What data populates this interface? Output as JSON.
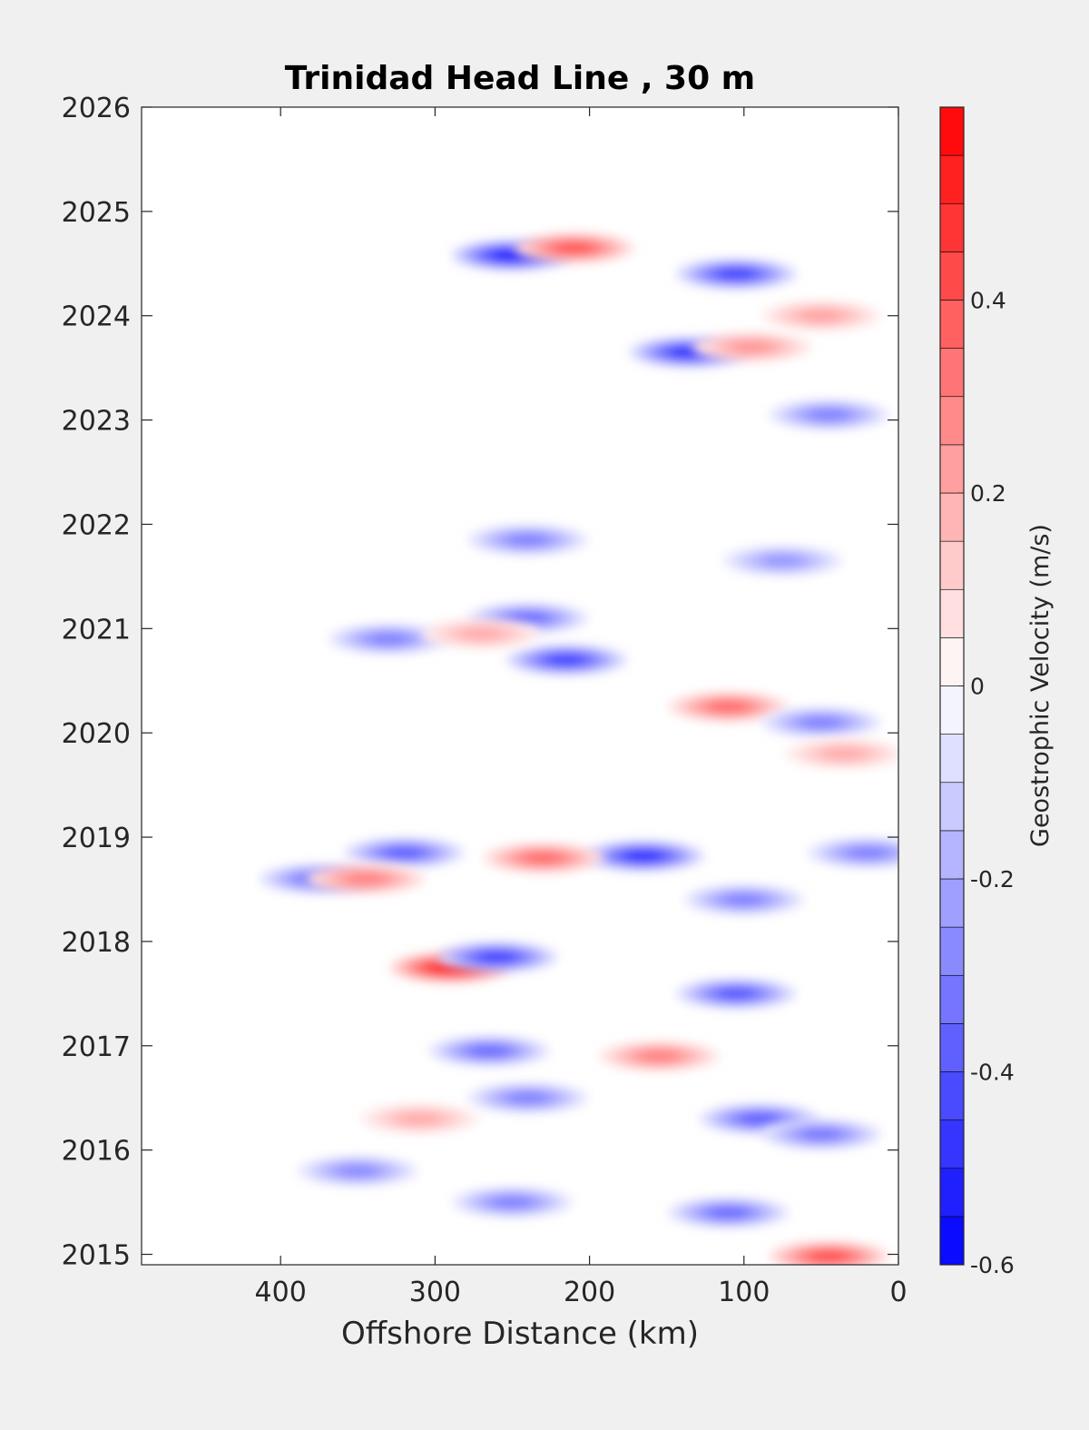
{
  "chart_data": {
    "type": "heatmap",
    "title": "Trinidad Head Line , 30 m",
    "xlabel": "Offshore Distance (km)",
    "ylabel": "",
    "xlim": [
      490,
      0
    ],
    "ylim": [
      2014.9,
      2026
    ],
    "x_ticks": [
      400,
      300,
      200,
      100,
      0
    ],
    "y_ticks": [
      2015,
      2016,
      2017,
      2018,
      2019,
      2020,
      2021,
      2022,
      2023,
      2024,
      2025,
      2026
    ],
    "grid": false,
    "colorbar": {
      "label": "Geostrophic Velocity (m/s)",
      "range": [
        -0.6,
        0.6
      ],
      "levels": 24,
      "ticks": [
        -0.6,
        -0.4,
        -0.2,
        0,
        0.2,
        0.4
      ],
      "tick_labels": [
        "-0.6",
        "-0.4",
        "-0.2",
        "0",
        "0.2",
        "0.4"
      ],
      "low_color": "#0000ff",
      "mid_color": "#ffffff",
      "high_color": "#ff0000"
    },
    "features": [
      {
        "x": 290,
        "y": 2017.75,
        "value": 0.56
      },
      {
        "x": 260,
        "y": 2017.85,
        "value": -0.45
      },
      {
        "x": 250,
        "y": 2024.58,
        "value": -0.55
      },
      {
        "x": 210,
        "y": 2024.65,
        "value": 0.4
      },
      {
        "x": 105,
        "y": 2024.4,
        "value": -0.45
      },
      {
        "x": 135,
        "y": 2023.65,
        "value": -0.5
      },
      {
        "x": 95,
        "y": 2023.7,
        "value": 0.25
      },
      {
        "x": 50,
        "y": 2024.0,
        "value": 0.22
      },
      {
        "x": 45,
        "y": 2023.05,
        "value": -0.3
      },
      {
        "x": 215,
        "y": 2020.7,
        "value": -0.45
      },
      {
        "x": 330,
        "y": 2020.9,
        "value": -0.3
      },
      {
        "x": 240,
        "y": 2021.1,
        "value": -0.35
      },
      {
        "x": 270,
        "y": 2020.95,
        "value": 0.2
      },
      {
        "x": 110,
        "y": 2020.25,
        "value": 0.35
      },
      {
        "x": 50,
        "y": 2020.1,
        "value": -0.3
      },
      {
        "x": 240,
        "y": 2021.85,
        "value": -0.3
      },
      {
        "x": 75,
        "y": 2021.65,
        "value": -0.25
      },
      {
        "x": 165,
        "y": 2018.82,
        "value": -0.5
      },
      {
        "x": 230,
        "y": 2018.8,
        "value": 0.35
      },
      {
        "x": 320,
        "y": 2018.85,
        "value": -0.38
      },
      {
        "x": 375,
        "y": 2018.6,
        "value": -0.35
      },
      {
        "x": 345,
        "y": 2018.6,
        "value": 0.3
      },
      {
        "x": 20,
        "y": 2018.85,
        "value": -0.3
      },
      {
        "x": 100,
        "y": 2018.4,
        "value": -0.3
      },
      {
        "x": 105,
        "y": 2017.5,
        "value": -0.4
      },
      {
        "x": 155,
        "y": 2016.9,
        "value": 0.3
      },
      {
        "x": 265,
        "y": 2016.95,
        "value": -0.35
      },
      {
        "x": 90,
        "y": 2016.3,
        "value": -0.38
      },
      {
        "x": 50,
        "y": 2016.15,
        "value": -0.32
      },
      {
        "x": 310,
        "y": 2016.3,
        "value": 0.2
      },
      {
        "x": 240,
        "y": 2016.5,
        "value": -0.3
      },
      {
        "x": 350,
        "y": 2015.8,
        "value": -0.28
      },
      {
        "x": 250,
        "y": 2015.5,
        "value": -0.3
      },
      {
        "x": 110,
        "y": 2015.4,
        "value": -0.35
      },
      {
        "x": 45,
        "y": 2014.98,
        "value": 0.42
      },
      {
        "x": 35,
        "y": 2019.8,
        "value": 0.2
      }
    ]
  }
}
